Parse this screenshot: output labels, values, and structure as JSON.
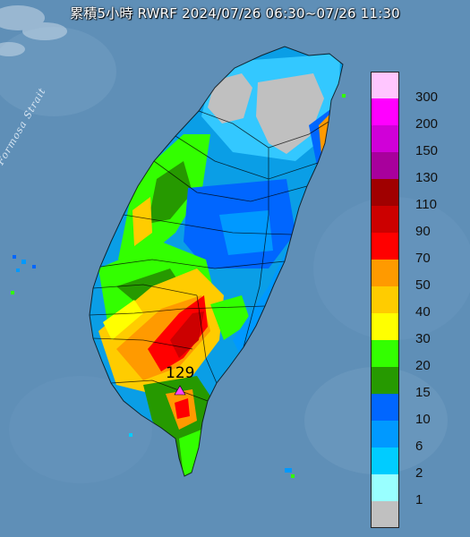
{
  "title": "累積5小時 RWRF 2024/07/26 06:30~07/26 11:30",
  "strait_label": "Formosa Strait",
  "max_station": {
    "value": "129",
    "marker": "triangle-marker"
  },
  "legend": [
    {
      "label": "300",
      "color": "#ffc6ff"
    },
    {
      "label": "200",
      "color": "#ff00ff"
    },
    {
      "label": "150",
      "color": "#d000d8"
    },
    {
      "label": "130",
      "color": "#a8009c"
    },
    {
      "label": "110",
      "color": "#a00000"
    },
    {
      "label": "90",
      "color": "#cc0000"
    },
    {
      "label": "70",
      "color": "#ff0000"
    },
    {
      "label": "50",
      "color": "#ff9a00"
    },
    {
      "label": "40",
      "color": "#ffcc00"
    },
    {
      "label": "30",
      "color": "#ffff00"
    },
    {
      "label": "20",
      "color": "#33ff00"
    },
    {
      "label": "15",
      "color": "#269900"
    },
    {
      "label": "10",
      "color": "#0066ff"
    },
    {
      "label": "6",
      "color": "#0099ff"
    },
    {
      "label": "2",
      "color": "#00ccff"
    },
    {
      "label": "1",
      "color": "#99ffff"
    },
    {
      "label": "",
      "color": "#c0c0c0"
    }
  ]
}
